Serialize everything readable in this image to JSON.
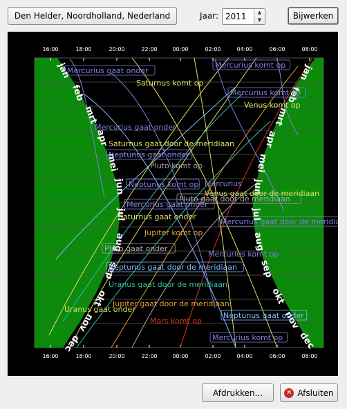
{
  "location_button": "Den Helder, Noordholland, Nederland",
  "year_label": "Jaar:",
  "year_value": "2011",
  "update_button": "Bijwerken",
  "print_button": "Afdrukken...",
  "close_button": "Afsluiten",
  "chart_data": {
    "type": "line",
    "time_ticks": [
      "16:00",
      "18:00",
      "20:00",
      "22:00",
      "00:00",
      "02:00",
      "04:00",
      "06:00",
      "08:00"
    ],
    "months": [
      "jan",
      "feb",
      "mrt",
      "apr",
      "mei",
      "jun",
      "jul",
      "aug",
      "sep",
      "okt",
      "nov",
      "dec"
    ],
    "colors": {
      "night": "#000000",
      "day": "#0c8a0c"
    },
    "events": [
      {
        "text": "Saturnus komt op",
        "color": "#e0e060",
        "boxed": false
      },
      {
        "text": "Mercurius gaat onder",
        "color": "#8080e0",
        "boxed": true
      },
      {
        "text": "Mercurius komt op",
        "color": "#8080e0",
        "boxed": true
      },
      {
        "text": "Mercurius komt op",
        "color": "#8080e0",
        "boxed": true
      },
      {
        "text": "Venus komt op",
        "color": "#e0e060",
        "boxed": false
      },
      {
        "text": "Mercurius gaat onder",
        "color": "#8080e0",
        "boxed": false
      },
      {
        "text": "Saturnus gaat door de meridiaan",
        "color": "#e0e060",
        "boxed": false
      },
      {
        "text": "Neptunus gaat onder",
        "color": "#8080e0",
        "boxed": true
      },
      {
        "text": "Pluto komt op",
        "color": "#aaaaaa",
        "boxed": false
      },
      {
        "text": "Neptunus komt op",
        "color": "#8080e0",
        "boxed": true
      },
      {
        "text": "Mercurius",
        "color": "#8080e0",
        "boxed": false
      },
      {
        "text": "Venus gaat door de meridiaan",
        "color": "#e0e060",
        "boxed": false
      },
      {
        "text": "Mercurius gaat onder",
        "color": "#8080e0",
        "boxed": true
      },
      {
        "text": "Pluto gaat door de meridiaan",
        "color": "#aaaaaa",
        "boxed": true
      },
      {
        "text": "Saturnus gaat onder",
        "color": "#e0e060",
        "boxed": false
      },
      {
        "text": "Mercurius gaat door de meridiaan",
        "color": "#8080e0",
        "boxed": true
      },
      {
        "text": "Jupiter komt op",
        "color": "#e0a030",
        "boxed": false
      },
      {
        "text": "Pluto gaat onder",
        "color": "#aaaaaa",
        "boxed": true
      },
      {
        "text": "Mercurius komt op",
        "color": "#8080e0",
        "boxed": false
      },
      {
        "text": "Neptunus gaat door de meridiaan",
        "color": "#80c0ff",
        "boxed": true
      },
      {
        "text": "Uranus gaat door de meridiaan",
        "color": "#30c0a0",
        "boxed": false
      },
      {
        "text": "Jupiter gaat door de meridiaan",
        "color": "#e0a030",
        "boxed": false
      },
      {
        "text": "Uranus gaat onder",
        "color": "#e0e060",
        "boxed": false
      },
      {
        "text": "Neptunus gaat onder",
        "color": "#80c0ff",
        "boxed": true
      },
      {
        "text": "Mars komt op",
        "color": "#e03020",
        "boxed": false
      },
      {
        "text": "Mercurius komt op",
        "color": "#8080e0",
        "boxed": true
      }
    ]
  }
}
